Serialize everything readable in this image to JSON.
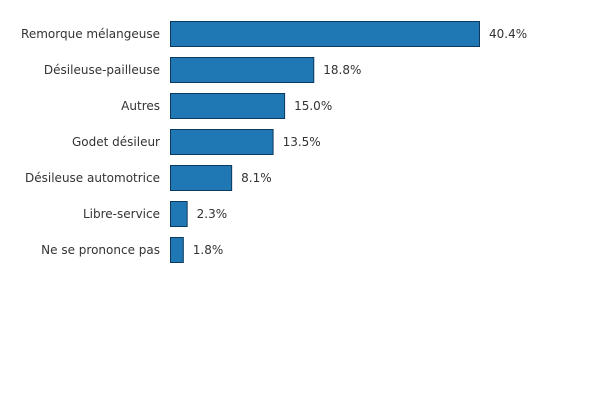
{
  "chart_data": {
    "type": "bar",
    "orientation": "horizontal",
    "categories": [
      "Remorque mélangeuse",
      "Désileuse-pailleuse",
      "Autres",
      "Godet désileur",
      "Désileuse automotrice",
      "Libre-service",
      "Ne se prononce pas"
    ],
    "values": [
      40.4,
      18.8,
      15.0,
      13.5,
      8.1,
      2.3,
      1.8
    ],
    "value_labels": [
      "40.4%",
      "18.8%",
      "15.0%",
      "13.5%",
      "8.1%",
      "2.3%",
      "1.8%"
    ],
    "unit": "%",
    "xlim": [
      0,
      40.4
    ],
    "title": "",
    "xlabel": "",
    "ylabel": "",
    "grid": false,
    "legend": "none",
    "colors": {
      "bar": "#1f77b4",
      "bar_edge": "#0d3a5c",
      "text": "#333333"
    }
  }
}
